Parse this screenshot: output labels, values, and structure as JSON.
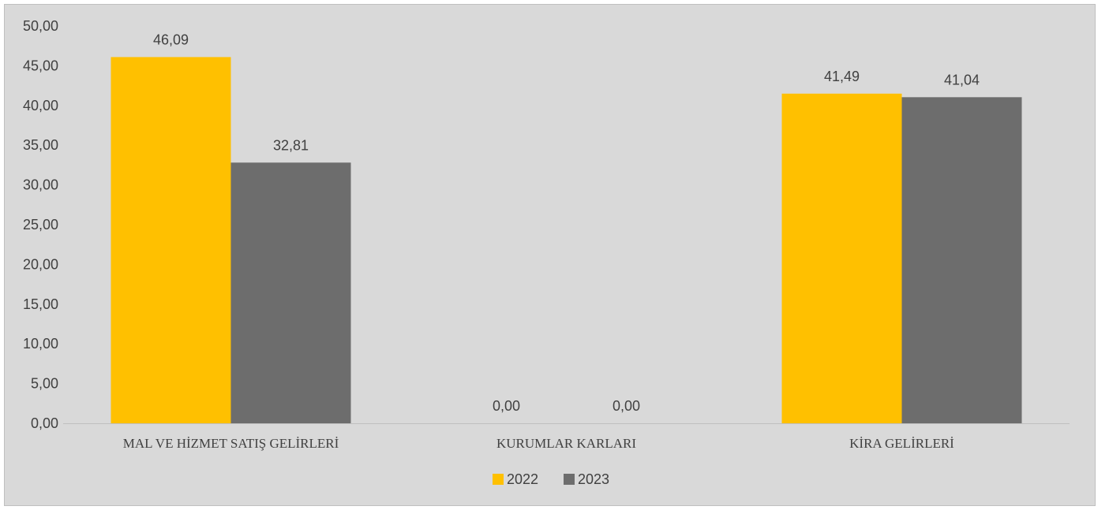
{
  "chart_data": {
    "type": "bar",
    "categories": [
      "MAL VE HİZMET SATIŞ GELİRLERİ",
      "KURUMLAR KARLARI",
      "KİRA GELİRLERİ"
    ],
    "series": [
      {
        "name": "2022",
        "values": [
          46.09,
          0.0,
          41.49
        ],
        "labels": [
          "46,09",
          "0,00",
          "41,49"
        ],
        "color": "#ffc000"
      },
      {
        "name": "2023",
        "values": [
          32.81,
          0.0,
          41.04
        ],
        "labels": [
          "32,81",
          "0,00",
          "41,04"
        ],
        "color": "#6d6d6d"
      }
    ],
    "ylim": [
      0,
      50
    ],
    "yticks": [
      0,
      5,
      10,
      15,
      20,
      25,
      30,
      35,
      40,
      45,
      50
    ],
    "ytick_labels": [
      "0,00",
      "5,00",
      "10,00",
      "15,00",
      "20,00",
      "25,00",
      "30,00",
      "35,00",
      "40,00",
      "45,00",
      "50,00"
    ],
    "grid": false,
    "legend": "bottom",
    "title": "",
    "xlabel": "",
    "ylabel": "",
    "background": "#d9d9d9"
  }
}
